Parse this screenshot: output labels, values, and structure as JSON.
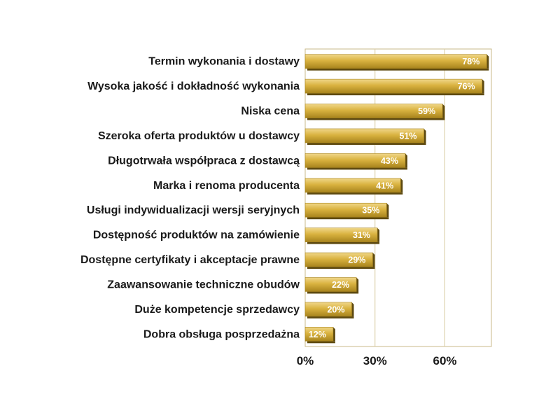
{
  "chart_data": {
    "type": "bar",
    "orientation": "horizontal",
    "categories": [
      "Termin wykonania i dostawy",
      "Wysoka jakość i dokładność wykonania",
      "Niska cena",
      "Szeroka oferta produktów u dostawcy",
      "Długotrwała współpraca z dostawcą",
      "Marka i renoma producenta",
      "Usługi indywidualizacji wersji seryjnych",
      "Dostępność produktów na zamówienie",
      "Dostępne certyfikaty i akceptacje prawne",
      "Zaawansowanie techniczne obudów",
      "Duże kompetencje sprzedawcy",
      "Dobra obsługa posprzedażna"
    ],
    "values": [
      78,
      76,
      59,
      51,
      43,
      41,
      35,
      31,
      29,
      22,
      20,
      12
    ],
    "data_labels": [
      "78%",
      "76%",
      "59%",
      "51%",
      "43%",
      "41%",
      "35%",
      "31%",
      "29%",
      "22%",
      "20%",
      "12%"
    ],
    "x_ticks": [
      0,
      30,
      60
    ],
    "x_tick_labels": [
      "0%",
      "30%",
      "60%"
    ],
    "xlim": [
      0,
      80
    ],
    "grid": true,
    "title": "",
    "xlabel": "",
    "ylabel": "",
    "colors": {
      "bar_light": "#f0d78a",
      "bar_mid": "#d9b23f",
      "bar_dark": "#a8841d",
      "bar_shadow": "#5e4a10",
      "plot_border": "#c9b98a",
      "gridline": "#d8cba0"
    }
  }
}
